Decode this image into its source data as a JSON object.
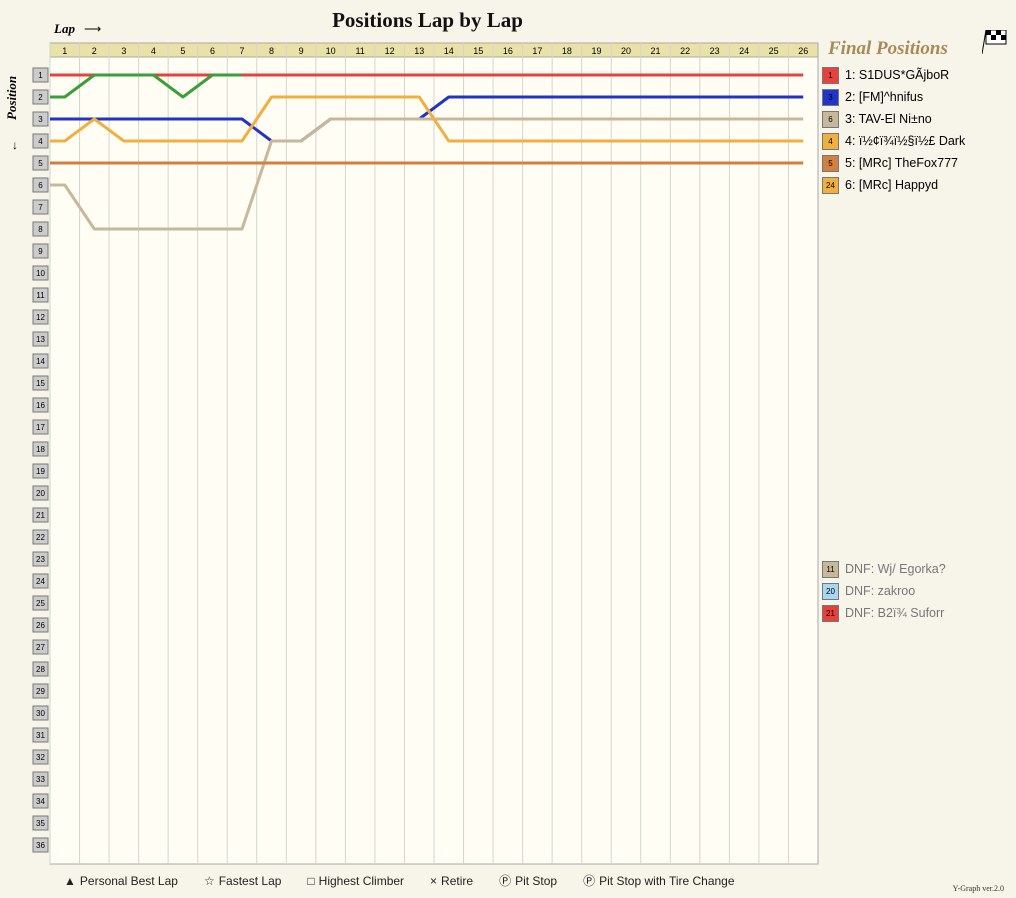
{
  "chart_data": {
    "type": "line",
    "title": "Positions Lap by Lap",
    "xlabel": "Lap",
    "ylabel": "Position",
    "laps": [
      1,
      2,
      3,
      4,
      5,
      6,
      7,
      8,
      9,
      10,
      11,
      12,
      13,
      14,
      15,
      16,
      17,
      18,
      19,
      20,
      21,
      22,
      23,
      24,
      25,
      26
    ],
    "positions": [
      1,
      2,
      3,
      4,
      5,
      6,
      7,
      8,
      9,
      10,
      11,
      12,
      13,
      14,
      15,
      16,
      17,
      18,
      19,
      20,
      21,
      22,
      23,
      24,
      25,
      26,
      27,
      28,
      29,
      30,
      31,
      32,
      33,
      34,
      35,
      36
    ],
    "final_positions_title": "Final Positions",
    "left_column_numbers": [
      1,
      2,
      3,
      4,
      5,
      6,
      7,
      8,
      9,
      10,
      11,
      12,
      13,
      14,
      15,
      16,
      17,
      18,
      19,
      20,
      21,
      22,
      23,
      24,
      25,
      26,
      27,
      28,
      29,
      30,
      31,
      32,
      33,
      34,
      35,
      36
    ],
    "series": [
      {
        "car": 1,
        "color": "#e8413c",
        "pos": [
          1,
          1,
          1,
          1,
          1,
          1,
          1,
          1,
          1,
          1,
          1,
          1,
          1,
          1,
          1,
          1,
          1,
          1,
          1,
          1,
          1,
          1,
          1,
          1,
          1,
          1
        ]
      },
      {
        "car": 2,
        "color": "#3a9f3a",
        "pos": [
          2,
          1,
          1,
          1,
          2,
          1,
          1
        ]
      },
      {
        "car": 3,
        "color": "#2233cc",
        "pos": [
          3,
          3,
          3,
          3,
          3,
          3,
          3,
          4,
          4,
          3,
          3,
          3,
          3,
          2,
          2,
          2,
          2,
          2,
          2,
          2,
          2,
          2,
          2,
          2,
          2,
          2
        ]
      },
      {
        "car": 6,
        "color": "#c8b89a",
        "pos": [
          6,
          8,
          8,
          8,
          8,
          8,
          8,
          4,
          4,
          3,
          3,
          3,
          3,
          3,
          3,
          3,
          3,
          3,
          3,
          3,
          3,
          3,
          3,
          3,
          3,
          3
        ]
      },
      {
        "car": 4,
        "color": "#f0b040",
        "pos": [
          4,
          3,
          4,
          4,
          4,
          4,
          4,
          2,
          2,
          2,
          2,
          2,
          2,
          4,
          4,
          4,
          4,
          4,
          4,
          4,
          4,
          4,
          4,
          4,
          4,
          4
        ]
      },
      {
        "car": 5,
        "color": "#d08040",
        "pos": [
          5,
          5,
          5,
          5,
          5,
          5,
          5,
          5,
          5,
          5,
          5,
          5,
          5,
          5,
          5,
          5,
          5,
          5,
          5,
          5,
          5,
          5,
          5,
          5,
          5,
          5
        ]
      }
    ]
  },
  "markers": {
    "pit_stop": "P",
    "personal_best": "▲",
    "retire": "×"
  },
  "final_positions": [
    {
      "num": "1",
      "text": "1: S1DUS*GÃjboR",
      "color": "#e8413c",
      "dnf": false
    },
    {
      "num": "3",
      "text": "2: [FM]^hnifus",
      "color": "#2233cc",
      "dnf": false
    },
    {
      "num": "6",
      "text": "3: TAV-El Ni±no",
      "color": "#c8b89a",
      "dnf": false
    },
    {
      "num": "4",
      "text": "4: ï½¢ï¾ï½§ï½£ Dark",
      "color": "#f0b040",
      "dnf": false
    },
    {
      "num": "5",
      "text": "5: [MRc] TheFox777",
      "color": "#d08040",
      "dnf": false
    },
    {
      "num": "24",
      "text": "6: [MRc] Happyd",
      "color": "#f0b040",
      "dnf": false
    }
  ],
  "dnf": [
    {
      "num": "11",
      "text": "DNF: Wj/ Egorka?",
      "color": "#c8b89a"
    },
    {
      "num": "20",
      "text": "DNF: zakroo",
      "color": "#a8d8f0"
    },
    {
      "num": "21",
      "text": "DNF: B2ï¾ Suforr",
      "color": "#e8413c"
    }
  ],
  "legend": {
    "personal_best": "Personal Best Lap",
    "fastest": "Fastest Lap",
    "highest_climber": "Highest Climber",
    "retire": "Retire",
    "pit_stop": "Pit Stop",
    "pit_tire": "Pit Stop with Tire Change",
    "version": "Y-Graph ver.2.0"
  }
}
